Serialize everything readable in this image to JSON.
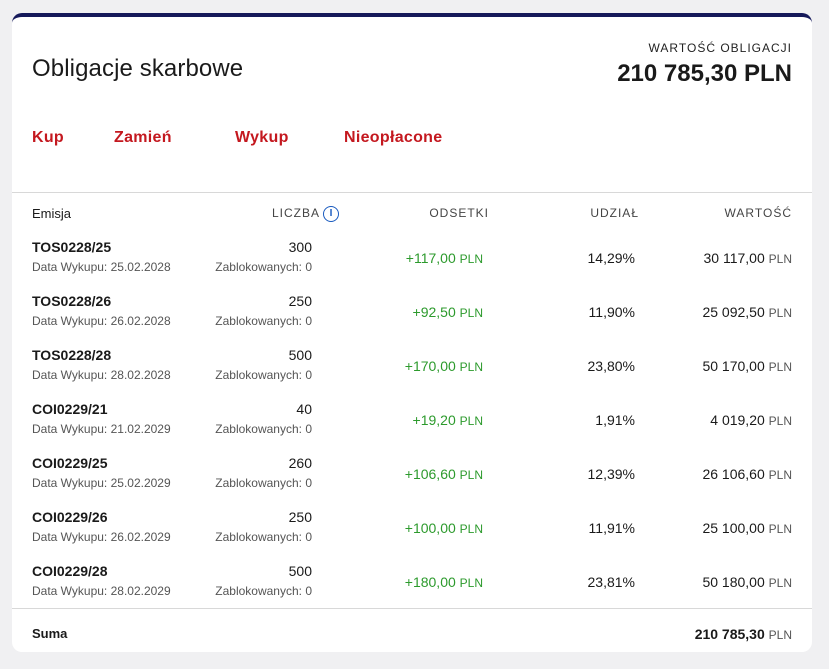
{
  "header": {
    "title": "Obligacje skarbowe",
    "summary_label": "WARTOŚĆ OBLIGACJI",
    "summary_value": "210 785,30 PLN"
  },
  "actions": [
    "Kup",
    "Zamień",
    "Wykup",
    "Nieopłacone"
  ],
  "table": {
    "headers": {
      "emisja": "Emisja",
      "liczba": "LICZBA",
      "odsetki": "ODSETKI",
      "udzial": "UDZIAŁ",
      "wartosc": "WARTOŚĆ"
    },
    "info_icon": "info-icon",
    "currency": "PLN",
    "rows": [
      {
        "emisja": "TOS0228/25",
        "date": "Data Wykupu: 25.02.2028",
        "count": "300",
        "blocked": "Zablokowanych: 0",
        "interest": "+117,00",
        "share": "14,29%",
        "value": "30 117,00"
      },
      {
        "emisja": "TOS0228/26",
        "date": "Data Wykupu: 26.02.2028",
        "count": "250",
        "blocked": "Zablokowanych: 0",
        "interest": "+92,50",
        "share": "11,90%",
        "value": "25 092,50"
      },
      {
        "emisja": "TOS0228/28",
        "date": "Data Wykupu: 28.02.2028",
        "count": "500",
        "blocked": "Zablokowanych: 0",
        "interest": "+170,00",
        "share": "23,80%",
        "value": "50 170,00"
      },
      {
        "emisja": "COI0229/21",
        "date": "Data Wykupu: 21.02.2029",
        "count": "40",
        "blocked": "Zablokowanych: 0",
        "interest": "+19,20",
        "share": "1,91%",
        "value": "4 019,20"
      },
      {
        "emisja": "COI0229/25",
        "date": "Data Wykupu: 25.02.2029",
        "count": "260",
        "blocked": "Zablokowanych: 0",
        "interest": "+106,60",
        "share": "12,39%",
        "value": "26 106,60"
      },
      {
        "emisja": "COI0229/26",
        "date": "Data Wykupu: 26.02.2029",
        "count": "250",
        "blocked": "Zablokowanych: 0",
        "interest": "+100,00",
        "share": "11,91%",
        "value": "25 100,00"
      },
      {
        "emisja": "COI0229/28",
        "date": "Data Wykupu: 28.02.2029",
        "count": "500",
        "blocked": "Zablokowanych: 0",
        "interest": "+180,00",
        "share": "23,81%",
        "value": "50 180,00"
      }
    ],
    "sum_label": "Suma",
    "sum_value": "210 785,30"
  },
  "colors": {
    "accent_red": "#c4181f",
    "top_border": "#15195a",
    "positive_green": "#2c9a2c",
    "info_blue": "#1a5bbf"
  }
}
